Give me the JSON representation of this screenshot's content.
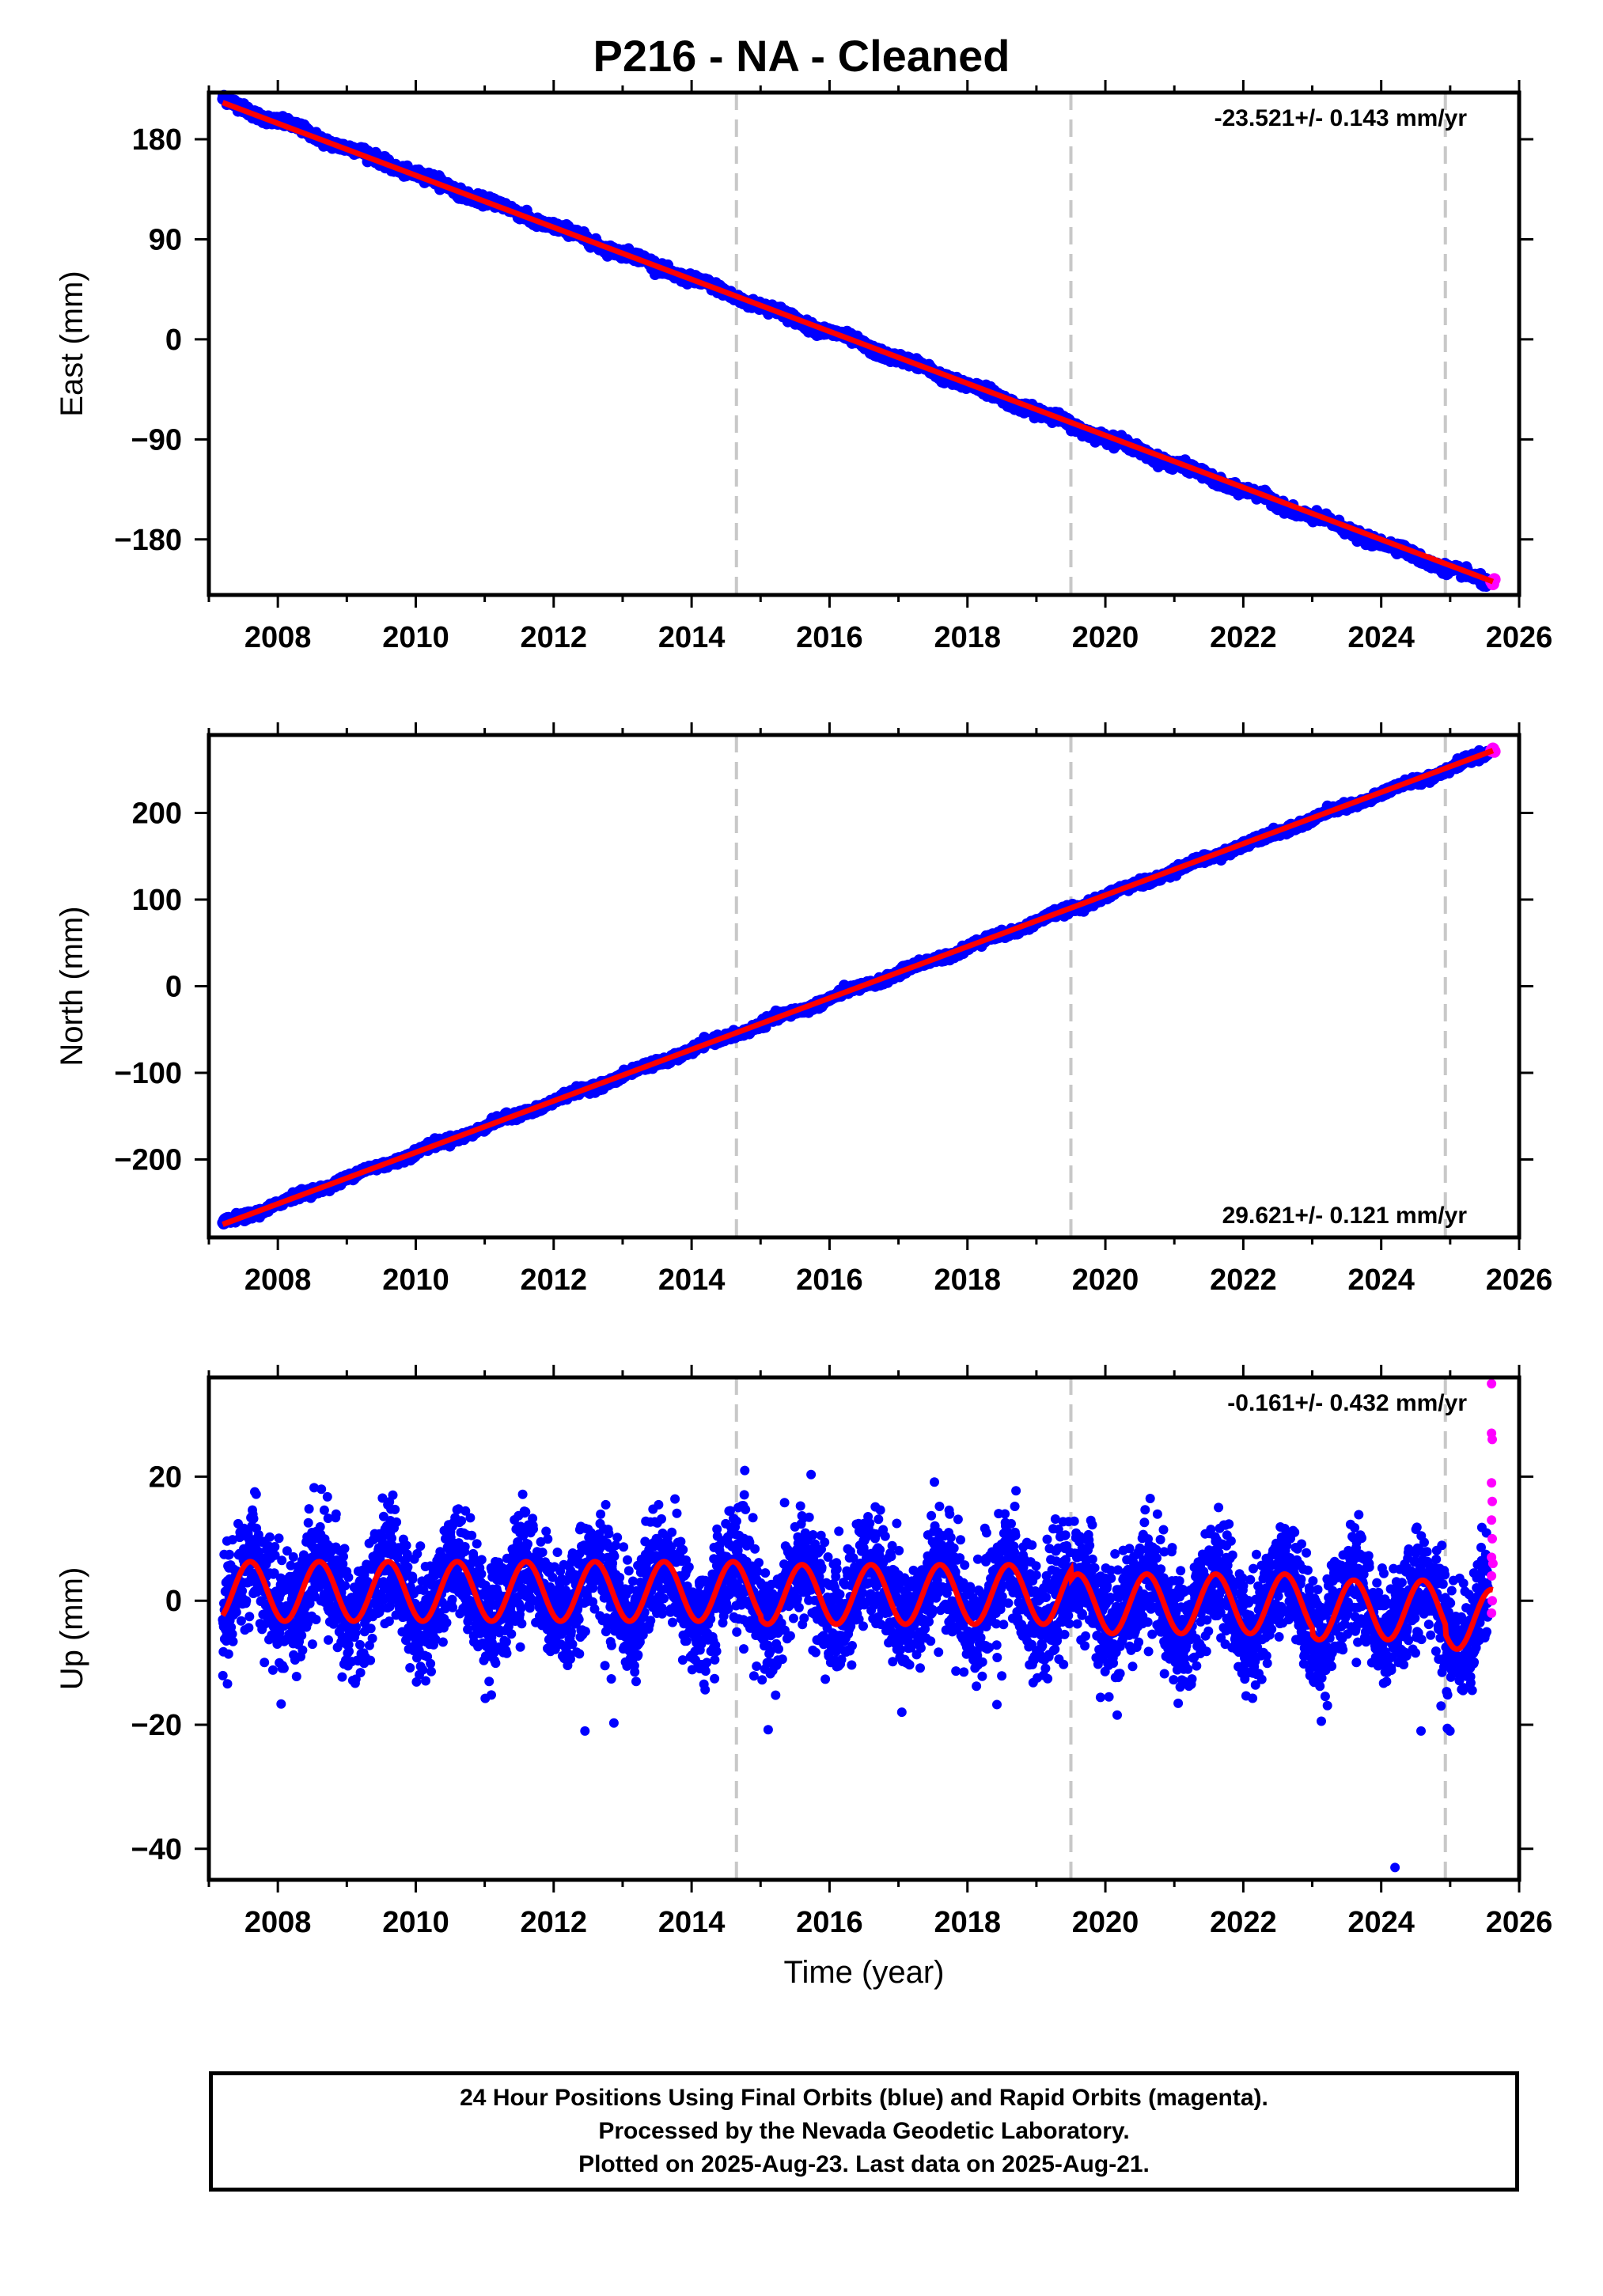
{
  "title": "P216  - NA - Cleaned",
  "footer": {
    "line1": "24 Hour Positions Using Final Orbits (blue) and Rapid Orbits (magenta).",
    "line2": "Processed by the Nevada Geodetic Laboratory.",
    "line3": "Plotted on 2025-Aug-23. Last data on 2025-Aug-21."
  },
  "colors": {
    "final_orbits": "#0000ff",
    "rapid_orbits": "#ff00ff",
    "model_fit": "#ff0000",
    "event_lines": "#c8c8c8"
  },
  "chart_data": [
    {
      "type": "scatter",
      "ylabel": "East (mm)",
      "xlabel": "",
      "xlim": [
        2007.0,
        2026.0
      ],
      "ylim": [
        -230,
        222
      ],
      "xticks": [
        2008,
        2010,
        2012,
        2014,
        2016,
        2018,
        2020,
        2022,
        2024,
        2026
      ],
      "yticks": [
        180,
        90,
        0,
        -90,
        -180
      ],
      "ytick_labels": [
        "180",
        "90",
        "0",
        "−90",
        "−180"
      ],
      "rate_label": "-23.521+/- 0.143 mm/yr",
      "rate_position": "top-right",
      "event_lines_x": [
        2014.65,
        2019.5,
        2024.93
      ],
      "series": [
        {
          "name": "Final Orbits (blue)",
          "color": "#0000ff",
          "x_range": [
            2007.2,
            2025.55
          ],
          "trend": {
            "start": [
              2007.2,
              215
            ],
            "end": [
              2025.55,
              -220
            ]
          },
          "noise_mm": 3
        },
        {
          "name": "Rapid Orbits (magenta)",
          "color": "#ff00ff",
          "x": [
            2025.6,
            2025.62,
            2025.64
          ],
          "values": [
            -218,
            -220,
            -216
          ]
        },
        {
          "name": "Model",
          "color": "#ff0000",
          "x": [
            2007.2,
            2025.62
          ],
          "values": [
            213,
            -218
          ]
        }
      ]
    },
    {
      "type": "scatter",
      "ylabel": "North (mm)",
      "xlabel": "",
      "xlim": [
        2007.0,
        2026.0
      ],
      "ylim": [
        -290,
        290
      ],
      "xticks": [
        2008,
        2010,
        2012,
        2014,
        2016,
        2018,
        2020,
        2022,
        2024,
        2026
      ],
      "yticks": [
        200,
        100,
        0,
        -100,
        -200
      ],
      "ytick_labels": [
        "200",
        "100",
        "0",
        "−100",
        "−200"
      ],
      "rate_label": "29.621+/- 0.121 mm/yr",
      "rate_position": "bottom-right",
      "event_lines_x": [
        2014.65,
        2019.5,
        2024.93
      ],
      "series": [
        {
          "name": "Final Orbits (blue)",
          "color": "#0000ff",
          "x_range": [
            2007.2,
            2025.55
          ],
          "trend": {
            "start": [
              2007.2,
              -275
            ],
            "end": [
              2025.55,
              268
            ]
          },
          "noise_mm": 3
        },
        {
          "name": "Rapid Orbits (magenta)",
          "color": "#ff00ff",
          "x": [
            2025.6,
            2025.62,
            2025.64
          ],
          "values": [
            272,
            274,
            271
          ]
        },
        {
          "name": "Model",
          "color": "#ff0000",
          "x": [
            2007.2,
            2025.62
          ],
          "values": [
            -275,
            272
          ]
        }
      ]
    },
    {
      "type": "scatter",
      "ylabel": "Up (mm)",
      "xlabel": "Time (year)",
      "xlim": [
        2007.0,
        2026.0
      ],
      "ylim": [
        -45,
        36
      ],
      "xticks": [
        2008,
        2010,
        2012,
        2014,
        2016,
        2018,
        2020,
        2022,
        2024,
        2026
      ],
      "yticks": [
        20,
        0,
        -20,
        -40
      ],
      "ytick_labels": [
        "20",
        "0",
        "−20",
        "−40"
      ],
      "rate_label": "-0.161+/- 0.432 mm/yr",
      "rate_position": "top-right",
      "event_lines_x": [
        2014.65,
        2019.5,
        2024.93
      ],
      "series": [
        {
          "name": "Final Orbits (blue)",
          "color": "#0000ff",
          "x_range": [
            2007.2,
            2025.55
          ],
          "noise_mm": 4.5,
          "annual_amplitude_mm": 4.8
        },
        {
          "name": "Rapid Orbits (magenta)",
          "color": "#ff00ff",
          "x": [
            2025.6,
            2025.6,
            2025.61,
            2025.6,
            2025.61,
            2025.6,
            2025.61,
            2025.6,
            2025.62,
            2025.6,
            2025.61,
            2025.6
          ],
          "values": [
            35,
            27,
            26,
            19,
            16,
            13,
            10,
            7,
            6,
            4,
            0,
            -2
          ]
        },
        {
          "name": "Model",
          "color": "#ff0000",
          "x_range": [
            2007.2,
            2025.62
          ],
          "model": "offset + annual",
          "offsets_mm": [
            [
              2007.2,
              1.5
            ],
            [
              2015.0,
              1.0
            ],
            [
              2019.5,
              -0.5
            ],
            [
              2023.0,
              -1.5
            ],
            [
              2024.93,
              -3.0
            ]
          ],
          "annual_amplitude_mm": 4.8
        }
      ]
    }
  ]
}
